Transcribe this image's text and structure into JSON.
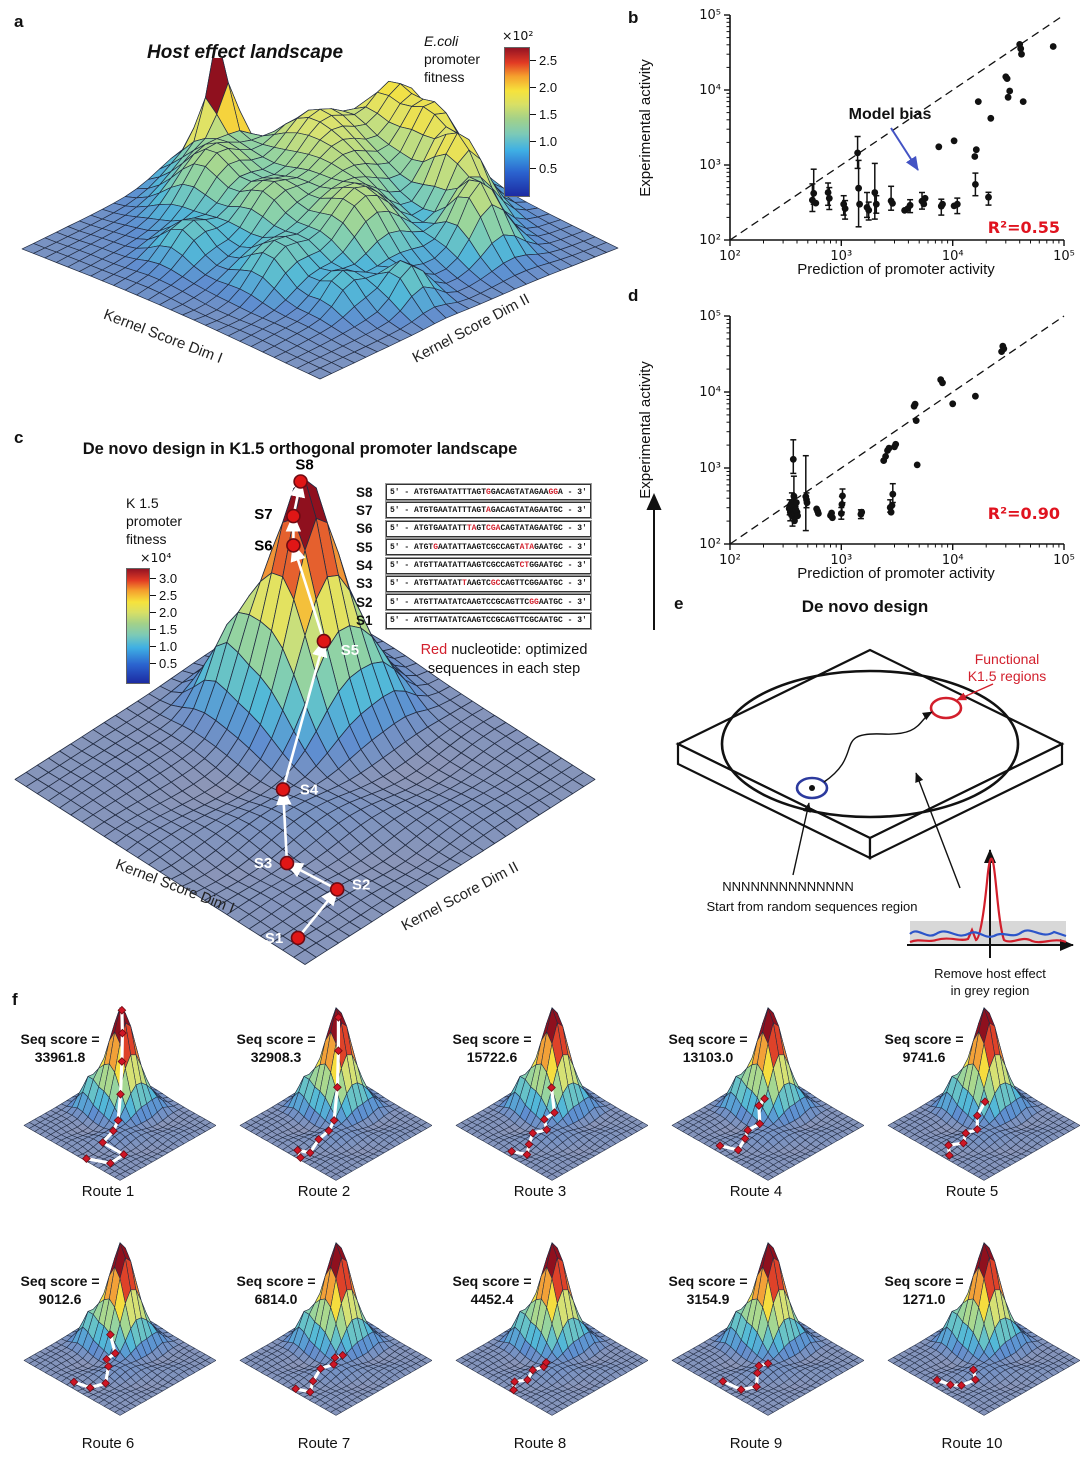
{
  "panels": {
    "a": {
      "label": "a",
      "title": "Host effect landscape",
      "axis_x": "Kernel Score Dim I",
      "axis_y": "Kernel Score Dim II",
      "colorbar": {
        "line1": "E.coli",
        "line2": "promoter",
        "line3": "fitness",
        "scale": "×10²",
        "ticks": [
          "2.5",
          "2.0",
          "1.5",
          "1.0",
          "0.5"
        ]
      }
    },
    "b": {
      "label": "b",
      "ylabel": "Experimental activity",
      "xlabel": "Prediction of promoter activity",
      "annotation": "Model bias",
      "r2": "R²=0.55",
      "xticks": [
        "10²",
        "10³",
        "10⁴",
        "10⁵"
      ],
      "yticks": [
        "10²",
        "10³",
        "10⁴",
        "10⁵"
      ]
    },
    "c": {
      "label": "c",
      "title": "De novo design in K1.5 orthogonal promoter landscape",
      "axis_x": "Kernel Score Dim I",
      "axis_y": "Kernel Score Dim II",
      "colorbar": {
        "line1": "K 1.5",
        "line2": "promoter",
        "line3": "fitness",
        "scale": "×10⁴",
        "ticks": [
          "3.0",
          "2.5",
          "2.0",
          "1.5",
          "1.0",
          "0.5"
        ]
      },
      "caption_red": "Red",
      "caption_rest": " nucleotide: optimized",
      "caption_line2": "sequences in each step"
    },
    "d": {
      "label": "d",
      "ylabel": "Experimental activity",
      "xlabel": "Prediction of promoter activity",
      "r2": "R²=0.90",
      "xticks": [
        "10²",
        "10³",
        "10⁴",
        "10⁵"
      ],
      "yticks": [
        "10²",
        "10³",
        "10⁴",
        "10⁵"
      ]
    },
    "e": {
      "label": "e",
      "title": "De novo design",
      "functional_line1": "Functional",
      "functional_line2": "K1.5 regions",
      "random_seq": "NNNNNNNNNNNNNN",
      "start_label": "Start from random sequences region",
      "remove_line1": "Remove host effect",
      "remove_line2": "in grey region"
    },
    "f": {
      "label": "f",
      "score_prefix": "Seq score ="
    }
  },
  "sequences": [
    {
      "label": "S8",
      "parts": [
        [
          "5' - ATGTGAATATTTAGT",
          "b"
        ],
        [
          "G",
          "r"
        ],
        [
          "GACAGTATAGAA",
          "b"
        ],
        [
          "GG",
          "r"
        ],
        [
          "A - 3'",
          "b"
        ]
      ]
    },
    {
      "label": "S7",
      "parts": [
        [
          "5' - ATGTGAATATTTAGT",
          "b"
        ],
        [
          "A",
          "r"
        ],
        [
          "GACAGTATAGAATGC - 3'",
          "b"
        ]
      ]
    },
    {
      "label": "S6",
      "parts": [
        [
          "5' - ATGTGAATATT",
          "b"
        ],
        [
          "TA",
          "r"
        ],
        [
          "GT",
          "b"
        ],
        [
          "CGA",
          "r"
        ],
        [
          "CAGTATAGAATGC - 3'",
          "b"
        ]
      ]
    },
    {
      "label": "S5",
      "parts": [
        [
          "5' - ATGT",
          "b"
        ],
        [
          "G",
          "r"
        ],
        [
          "AATATTAAGTCGCCAGT",
          "b"
        ],
        [
          "ATA",
          "r"
        ],
        [
          "GAATGC - 3'",
          "b"
        ]
      ]
    },
    {
      "label": "S4",
      "parts": [
        [
          "5' - ATGTTAATATTAAGTCGCCAGT",
          "b"
        ],
        [
          "CT",
          "r"
        ],
        [
          "GGAATGC - 3'",
          "b"
        ]
      ]
    },
    {
      "label": "S3",
      "parts": [
        [
          "5' - ATGTTAATAT",
          "b"
        ],
        [
          "T",
          "r"
        ],
        [
          "AAGTC",
          "b"
        ],
        [
          "GC",
          "r"
        ],
        [
          "CAGTTCGGAATGC - 3'",
          "b"
        ]
      ]
    },
    {
      "label": "S2",
      "parts": [
        [
          "5' - ATGTTAATATCAAGTCCGCAGTTC",
          "b"
        ],
        [
          "GG",
          "r"
        ],
        [
          "AATGC - 3'",
          "b"
        ]
      ]
    },
    {
      "label": "S1",
      "parts": [
        [
          "5' - ATGTTAATATCAAGTCCGCAGTTCGCAATGC - 3'",
          "b"
        ]
      ]
    }
  ],
  "chart_data": {
    "a_surface": {
      "type": "surface",
      "title": "Host effect landscape",
      "xlabel": "Kernel Score Dim I",
      "ylabel": "Kernel Score Dim II",
      "zlabel": "E.coli promoter fitness",
      "z_scale": "×10²",
      "z_ticks": [
        2.5,
        2.0,
        1.5,
        1.0,
        0.5
      ],
      "description": "rugged multi-peak landscape, one sharp red peak left of center, yellow ridge along back edge, green midlands, flat grey-blue borders"
    },
    "b_scatter": {
      "type": "scatter",
      "xscale": "log",
      "yscale": "log",
      "xlabel": "Prediction of promoter activity",
      "ylabel": "Experimental activity",
      "xlim": [
        100,
        100000
      ],
      "ylim": [
        100,
        100000
      ],
      "annotation": "Model bias",
      "r_squared": 0.55,
      "identity_line": "dashed",
      "points": [
        [
          550,
          340,
          240,
          560
        ],
        [
          565,
          420,
          300,
          880
        ],
        [
          590,
          310
        ],
        [
          760,
          430,
          290,
          575
        ],
        [
          780,
          360,
          255,
          500
        ],
        [
          1050,
          300,
          215,
          390
        ],
        [
          1080,
          262,
          190,
          335
        ],
        [
          1400,
          1450,
          900,
          2400
        ],
        [
          1430,
          490,
          150,
          1150
        ],
        [
          1460,
          300
        ],
        [
          1700,
          272,
          200,
          430
        ],
        [
          1760,
          250,
          185,
          320
        ],
        [
          2000,
          430,
          190,
          1050
        ],
        [
          2060,
          300,
          228,
          390
        ],
        [
          2800,
          332,
          250,
          520
        ],
        [
          2880,
          308
        ],
        [
          3700,
          248
        ],
        [
          3950,
          262
        ],
        [
          4150,
          290,
          232,
          345
        ],
        [
          5300,
          330,
          258,
          430
        ],
        [
          5500,
          302
        ],
        [
          5650,
          360
        ],
        [
          7500,
          1750
        ],
        [
          7900,
          282,
          215,
          350
        ],
        [
          8100,
          300
        ],
        [
          10300,
          2100
        ],
        [
          10300,
          285
        ],
        [
          11000,
          300,
          225,
          362
        ],
        [
          15800,
          1300
        ],
        [
          16300,
          1600
        ],
        [
          16000,
          552,
          390,
          780
        ],
        [
          17000,
          7000
        ],
        [
          21000,
          372,
          292,
          432
        ],
        [
          22000,
          4200
        ],
        [
          30000,
          15000
        ],
        [
          30800,
          14200
        ],
        [
          31500,
          8000
        ],
        [
          32500,
          9700
        ],
        [
          40000,
          40500
        ],
        [
          40800,
          35500
        ],
        [
          41500,
          30000
        ],
        [
          43000,
          7000
        ],
        [
          80000,
          38000
        ]
      ]
    },
    "c_surface": {
      "type": "surface",
      "title": "De novo design in K1.5 orthogonal promoter landscape",
      "xlabel": "Kernel Score Dim I",
      "ylabel": "Kernel Score Dim II",
      "zlabel": "K 1.5 promoter fitness",
      "z_scale": "×10⁴",
      "z_ticks": [
        3.0,
        2.5,
        2.0,
        1.5,
        1.0,
        0.5
      ],
      "steps": [
        "S1",
        "S2",
        "S3",
        "S4",
        "S5",
        "S6",
        "S7",
        "S8"
      ],
      "description": "single tall sharp peak; white optimization route climbs from flat region S1 to peak S8"
    },
    "d_scatter": {
      "type": "scatter",
      "xscale": "log",
      "yscale": "log",
      "xlabel": "Prediction of promoter activity",
      "ylabel": "Experimental activity",
      "xlim": [
        100,
        100000
      ],
      "ylim": [
        100,
        100000
      ],
      "r_squared": 0.9,
      "identity_line": "dashed",
      "points": [
        [
          340,
          292
        ],
        [
          344,
          312,
          242,
          382
        ],
        [
          348,
          262,
          202,
          330
        ],
        [
          352,
          332
        ],
        [
          356,
          242
        ],
        [
          358,
          282,
          230,
          342
        ],
        [
          360,
          352,
          262,
          470
        ],
        [
          362,
          302
        ],
        [
          364,
          232,
          172,
          292
        ],
        [
          367,
          322
        ],
        [
          370,
          1300,
          850,
          2350
        ],
        [
          372,
          272
        ],
        [
          375,
          425,
          300,
          780
        ],
        [
          378,
          252
        ],
        [
          380,
          202
        ],
        [
          385,
          312
        ],
        [
          390,
          282
        ],
        [
          395,
          352
        ],
        [
          400,
          262
        ],
        [
          405,
          235
        ],
        [
          480,
          420,
          150,
          1450
        ],
        [
          487,
          382,
          300,
          470
        ],
        [
          492,
          350
        ],
        [
          600,
          290
        ],
        [
          612,
          270
        ],
        [
          622,
          252
        ],
        [
          800,
          237
        ],
        [
          818,
          256
        ],
        [
          832,
          222
        ],
        [
          1000,
          252,
          212,
          302
        ],
        [
          1012,
          332,
          262,
          422
        ],
        [
          1025,
          430,
          350,
          530
        ],
        [
          1500,
          246,
          216,
          282
        ],
        [
          1525,
          262
        ],
        [
          2400,
          1250
        ],
        [
          2500,
          1420
        ],
        [
          2600,
          1700
        ],
        [
          2680,
          1820
        ],
        [
          2750,
          302,
          262,
          382
        ],
        [
          2800,
          262
        ],
        [
          2850,
          322
        ],
        [
          2900,
          452,
          352,
          622
        ],
        [
          3000,
          1900
        ],
        [
          3080,
          2050
        ],
        [
          4500,
          6500
        ],
        [
          4600,
          6900
        ],
        [
          4700,
          4200
        ],
        [
          4800,
          1100
        ],
        [
          7800,
          14500
        ],
        [
          8100,
          13200
        ],
        [
          10000,
          7000
        ],
        [
          16000,
          8800
        ],
        [
          27500,
          34000
        ],
        [
          28200,
          40000
        ],
        [
          28800,
          37000
        ]
      ]
    },
    "f_panels": [
      {
        "route_label": "Route 1",
        "seq_score": "33961.8"
      },
      {
        "route_label": "Route 2",
        "seq_score": "32908.3"
      },
      {
        "route_label": "Route 3",
        "seq_score": "15722.6"
      },
      {
        "route_label": "Route 4",
        "seq_score": "13103.0"
      },
      {
        "route_label": "Route 5",
        "seq_score": "9741.6"
      },
      {
        "route_label": "Route 6",
        "seq_score": "9012.6"
      },
      {
        "route_label": "Route 7",
        "seq_score": "6814.0"
      },
      {
        "route_label": "Route 8",
        "seq_score": "4452.4"
      },
      {
        "route_label": "Route 9",
        "seq_score": "3154.9"
      },
      {
        "route_label": "Route 10",
        "seq_score": "1271.0"
      }
    ],
    "colors": {
      "accent_red": "#d21f2c",
      "r2_red": "#e0131f",
      "model_bias_arrow_blue": "#4353c4",
      "route_white": "#ffffff",
      "marker_red": "#cf1626",
      "grey_region": "#d8d8d8"
    }
  }
}
